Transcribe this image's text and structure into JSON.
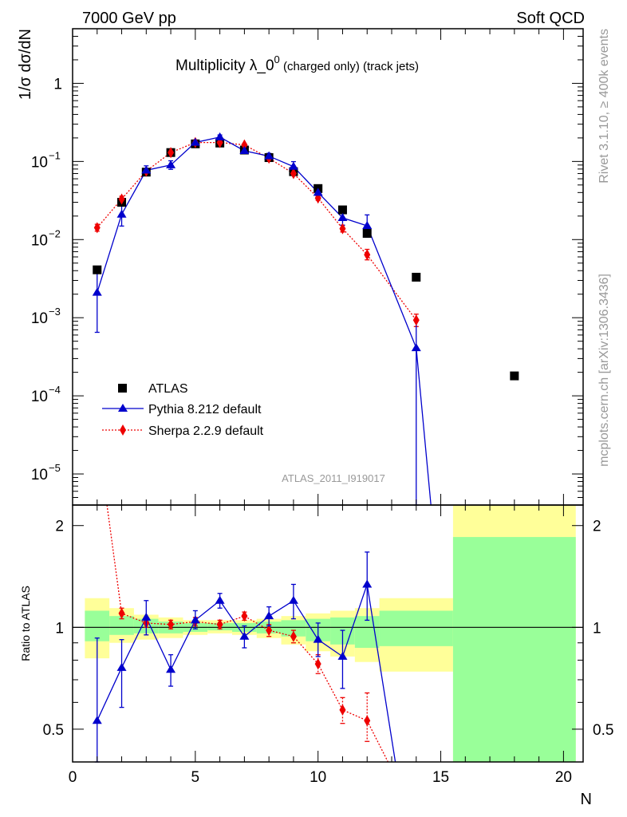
{
  "header": {
    "left": "7000 GeV pp",
    "right": "Soft QCD"
  },
  "side": {
    "rivet": "Rivet 3.1.10, ≥ 400k events",
    "mcplots": "mcplots.cern.ch [arXiv:1306.3436]"
  },
  "chart_data": {
    "type": "scatter",
    "title_main": "Multiplicity λ_0",
    "title_sup": "0",
    "title_tail": " (charged only) (track jets)",
    "analysis_label": "ATLAS_2011_I919017",
    "xlabel": "N",
    "ylabel_top": "1/σ dσ/dN",
    "ylabel_bottom": "Ratio to ATLAS",
    "xlim": [
      0,
      20.8
    ],
    "ylim_top": [
      4e-06,
      5
    ],
    "ylim_bottom": [
      0.4,
      2.3
    ],
    "x_ticks": [
      "0",
      "5",
      "10",
      "15",
      "20"
    ],
    "y_ticks_top": [
      {
        "base": "1",
        "exp": ""
      },
      {
        "base": "10",
        "exp": "−1"
      },
      {
        "base": "10",
        "exp": "−2"
      },
      {
        "base": "10",
        "exp": "−3"
      },
      {
        "base": "10",
        "exp": "−4"
      },
      {
        "base": "10",
        "exp": "−5"
      }
    ],
    "y_ticks_bottom": [
      "2",
      "1",
      "0.5"
    ],
    "colors": {
      "data": "#000000",
      "pythia": "#0000cc",
      "sherpa": "#ee0000",
      "band_green": "#99ff99",
      "band_yellow": "#ffff99"
    },
    "legend": [
      "ATLAS",
      "Pythia 8.212 default",
      "Sherpa 2.2.9 default"
    ],
    "series": [
      {
        "name": "ATLAS",
        "x": [
          1,
          2,
          3,
          4,
          5,
          6,
          7,
          8,
          9,
          10,
          11,
          12,
          14,
          18
        ],
        "y": [
          0.0041,
          0.03,
          0.073,
          0.13,
          0.168,
          0.172,
          0.14,
          0.112,
          0.074,
          0.045,
          0.024,
          0.012,
          0.0033,
          0.00018
        ]
      },
      {
        "name": "Pythia 8.212 default",
        "x": [
          1,
          2,
          3,
          4,
          5,
          6,
          7,
          8,
          9,
          10,
          11,
          12,
          14,
          14.6
        ],
        "y": [
          0.0021,
          0.021,
          0.077,
          0.09,
          0.175,
          0.205,
          0.137,
          0.117,
          0.086,
          0.04,
          0.019,
          0.015,
          0.00041,
          3.5e-06
        ],
        "yerr_lo": [
          0.00145,
          0.0061,
          0.0097,
          0.0107,
          0.0115,
          0.0118,
          0.0104,
          0.0091,
          0.0123,
          0.0056,
          0.0037,
          0.0043,
          0.00041,
          0
        ],
        "yerr_hi": [
          0.0021,
          0.0067,
          0.0109,
          0.012,
          0.0129,
          0.0133,
          0.0116,
          0.0102,
          0.0135,
          0.0062,
          0.0041,
          0.0057,
          0.00054,
          0
        ]
      },
      {
        "name": "Sherpa 2.2.9 default",
        "x": [
          1,
          2,
          3,
          4,
          5,
          6,
          7,
          8,
          9,
          10,
          11,
          12,
          14
        ],
        "y": [
          0.0142,
          0.033,
          0.075,
          0.13,
          0.175,
          0.175,
          0.163,
          0.11,
          0.07,
          0.034,
          0.0138,
          0.0064,
          0.00093
        ],
        "yerr_lo": [
          0.0014,
          0.0027,
          0.0042,
          0.005,
          0.0053,
          0.0053,
          0.0051,
          0.0042,
          0.0034,
          0.0022,
          0.0013,
          0.0009,
          0.00016
        ],
        "yerr_hi": [
          0.0015,
          0.0029,
          0.0044,
          0.0052,
          0.0055,
          0.0055,
          0.0053,
          0.0044,
          0.0036,
          0.0024,
          0.0014,
          0.0011,
          0.00018
        ]
      }
    ],
    "ratio": {
      "pythia": {
        "x": [
          1,
          2,
          3,
          4,
          5,
          6,
          7,
          8,
          9,
          10,
          11,
          12,
          13.15
        ],
        "y": [
          0.53,
          0.76,
          1.07,
          0.75,
          1.05,
          1.2,
          0.94,
          1.08,
          1.2,
          0.92,
          0.82,
          1.34,
          0.4
        ],
        "yerr_lo": [
          0.35,
          0.18,
          0.12,
          0.08,
          0.06,
          0.06,
          0.07,
          0.07,
          0.14,
          0.1,
          0.16,
          0.29,
          0
        ],
        "yerr_hi": [
          0.4,
          0.16,
          0.13,
          0.08,
          0.07,
          0.06,
          0.07,
          0.07,
          0.14,
          0.11,
          0.16,
          0.33,
          0
        ]
      },
      "sherpa": {
        "x": [
          1.4,
          2,
          3,
          4,
          5,
          6,
          7,
          8,
          9,
          10,
          11,
          12,
          12.85
        ],
        "y": [
          2.3,
          1.1,
          1.03,
          1.02,
          1.04,
          1.02,
          1.08,
          0.98,
          0.94,
          0.78,
          0.57,
          0.53,
          0.4
        ],
        "yerr_lo": [
          0,
          0.04,
          0.03,
          0.03,
          0.03,
          0.03,
          0.03,
          0.04,
          0.04,
          0.05,
          0.05,
          0.07,
          0
        ],
        "yerr_hi": [
          0,
          0.04,
          0.03,
          0.03,
          0.03,
          0.03,
          0.03,
          0.04,
          0.04,
          0.05,
          0.05,
          0.11,
          0
        ]
      },
      "bands": [
        {
          "x0": 0.5,
          "x1": 1.5,
          "g": [
            0.91,
            1.12
          ],
          "y": [
            0.81,
            1.22
          ]
        },
        {
          "x0": 1.5,
          "x1": 2.5,
          "g": [
            0.95,
            1.08
          ],
          "y": [
            0.9,
            1.14
          ]
        },
        {
          "x0": 2.5,
          "x1": 3.5,
          "g": [
            0.96,
            1.06
          ],
          "y": [
            0.92,
            1.09
          ]
        },
        {
          "x0": 3.5,
          "x1": 4.5,
          "g": [
            0.96,
            1.04
          ],
          "y": [
            0.93,
            1.07
          ]
        },
        {
          "x0": 4.5,
          "x1": 5.5,
          "g": [
            0.97,
            1.03
          ],
          "y": [
            0.95,
            1.05
          ]
        },
        {
          "x0": 5.5,
          "x1": 6.5,
          "g": [
            0.98,
            1.03
          ],
          "y": [
            0.96,
            1.05
          ]
        },
        {
          "x0": 6.5,
          "x1": 7.5,
          "g": [
            0.97,
            1.03
          ],
          "y": [
            0.95,
            1.05
          ]
        },
        {
          "x0": 7.5,
          "x1": 8.5,
          "g": [
            0.96,
            1.04
          ],
          "y": [
            0.93,
            1.06
          ]
        },
        {
          "x0": 8.5,
          "x1": 9.5,
          "g": [
            0.94,
            1.05
          ],
          "y": [
            0.89,
            1.08
          ]
        },
        {
          "x0": 9.5,
          "x1": 10.5,
          "g": [
            0.91,
            1.06
          ],
          "y": [
            0.85,
            1.1
          ]
        },
        {
          "x0": 10.5,
          "x1": 11.5,
          "g": [
            0.89,
            1.07
          ],
          "y": [
            0.82,
            1.12
          ]
        },
        {
          "x0": 11.5,
          "x1": 12.5,
          "g": [
            0.87,
            1.08
          ],
          "y": [
            0.79,
            1.14
          ]
        },
        {
          "x0": 12.5,
          "x1": 15.5,
          "g": [
            0.88,
            1.12
          ],
          "y": [
            0.74,
            1.22
          ]
        },
        {
          "x0": 15.5,
          "x1": 20.5,
          "g": [
            0.4,
            1.85
          ],
          "y": [
            0.4,
            2.3
          ]
        }
      ]
    }
  }
}
